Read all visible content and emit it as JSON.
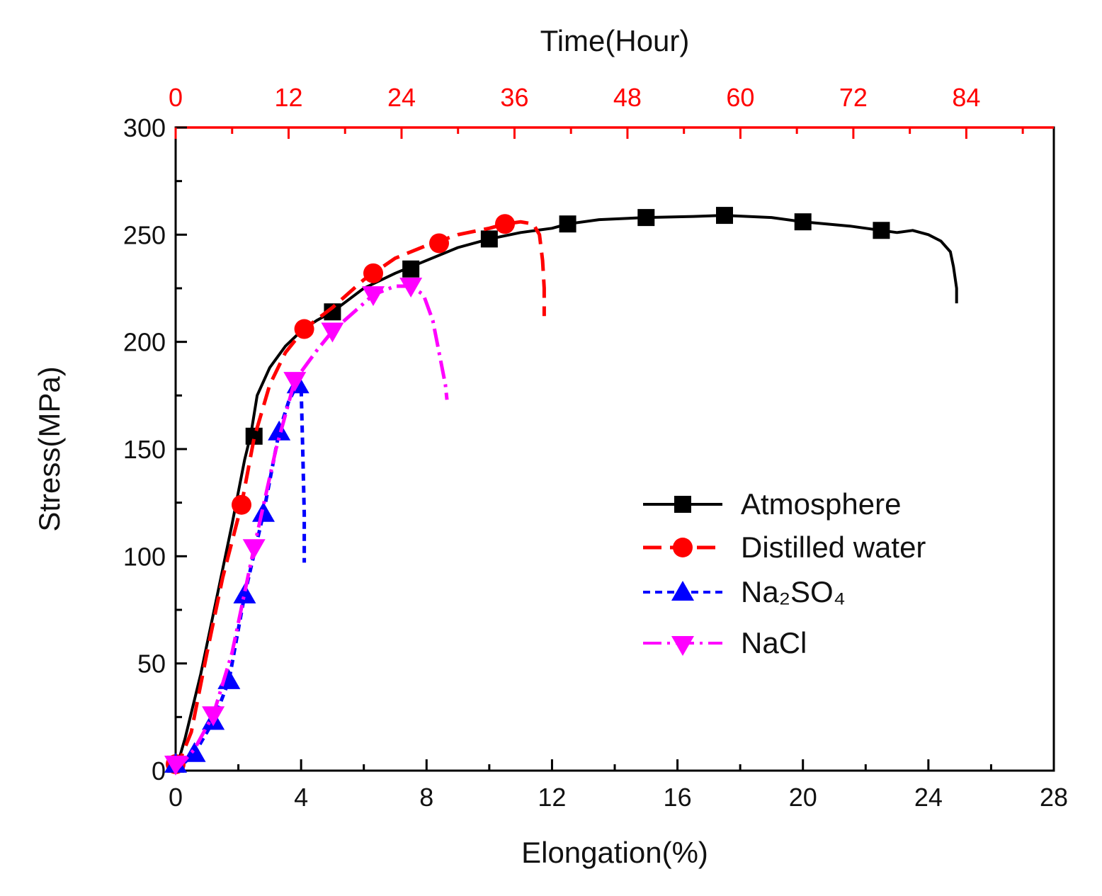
{
  "chart_data": {
    "type": "line",
    "xlabel": "Elongation(%)",
    "ylabel": "Stress(MPa)",
    "x2label": "Time(Hour)",
    "xlim": [
      0,
      28
    ],
    "ylim": [
      0,
      300
    ],
    "x2lim": [
      0,
      93.3
    ],
    "xticks": [
      "0",
      "4",
      "8",
      "12",
      "16",
      "20",
      "24",
      "28"
    ],
    "yticks": [
      "0",
      "50",
      "100",
      "150",
      "200",
      "250",
      "300"
    ],
    "x2ticks": [
      "0",
      "12",
      "24",
      "36",
      "48",
      "60",
      "72",
      "84"
    ],
    "grid": false,
    "legend_position": "lower-right",
    "top_axis_color": "#ff0000",
    "series": [
      {
        "name": "Atmosphere",
        "color": "#000000",
        "line_style": "solid",
        "marker": "square",
        "x": [
          0,
          0.3,
          0.8,
          1.3,
          1.8,
          2.2,
          2.4,
          2.6,
          3.0,
          3.5,
          4.0,
          4.5,
          5.0,
          6.0,
          7.0,
          8.0,
          9.0,
          10.0,
          11.0,
          12.0,
          12.5,
          13.5,
          15.0,
          16.5,
          17.5,
          19.0,
          20.0,
          21.5,
          22.5,
          23.0,
          23.5,
          24.0,
          24.4,
          24.7,
          24.8,
          24.9,
          24.9
        ],
        "y": [
          0,
          15,
          45,
          80,
          115,
          145,
          157,
          175,
          188,
          198,
          205,
          210,
          214,
          225,
          232,
          238,
          244,
          248,
          251,
          253,
          255,
          257,
          258,
          258.5,
          259,
          258,
          256,
          254,
          252,
          251,
          252,
          250,
          247,
          242,
          235,
          225,
          218
        ],
        "marker_x": [
          0,
          2.5,
          5.0,
          7.5,
          10.0,
          12.5,
          15.0,
          17.5,
          20.0,
          22.5
        ],
        "marker_y": [
          3,
          156,
          214,
          234,
          248,
          255,
          258,
          259,
          256,
          252
        ]
      },
      {
        "name": "Distilled water",
        "color": "#ff0000",
        "line_style": "dash",
        "marker": "circle",
        "x": [
          0,
          0.5,
          1.0,
          1.5,
          2.1,
          2.5,
          3.0,
          3.5,
          4.1,
          5.0,
          6.0,
          7.0,
          8.0,
          9.0,
          10.0,
          10.5,
          11.0,
          11.4,
          11.6,
          11.7,
          11.75,
          11.75
        ],
        "y": [
          0,
          18,
          55,
          90,
          124,
          155,
          180,
          195,
          206,
          216,
          229,
          239,
          245,
          250,
          253,
          255,
          256,
          255,
          250,
          238,
          225,
          212
        ],
        "marker_x": [
          0,
          2.1,
          4.1,
          6.3,
          8.4,
          10.5
        ],
        "marker_y": [
          3,
          124,
          206,
          232,
          246,
          255
        ]
      },
      {
        "name": "Na₂SO₄",
        "color": "#0000ff",
        "line_style": "short-dash",
        "marker": "triangle-up",
        "x": [
          0,
          0.6,
          1.2,
          1.7,
          2.2,
          2.8,
          3.3,
          3.6,
          3.9,
          4.0,
          4.05,
          4.1,
          4.1
        ],
        "y": [
          0,
          8,
          23,
          42,
          82,
          120,
          158,
          172,
          181,
          180,
          150,
          120,
          97
        ],
        "marker_x": [
          0,
          0.6,
          1.2,
          1.7,
          2.2,
          2.8,
          3.3,
          3.9
        ],
        "marker_y": [
          3,
          8,
          23,
          42,
          82,
          120,
          158,
          180
        ]
      },
      {
        "name": "NaCl",
        "color": "#ff00ff",
        "line_style": "dash-dot",
        "marker": "triangle-down",
        "x": [
          0,
          0.6,
          1.2,
          1.8,
          2.5,
          3.2,
          3.8,
          4.5,
          5.0,
          6.0,
          6.3,
          7.0,
          7.5,
          7.9,
          8.2,
          8.4,
          8.6,
          8.65
        ],
        "y": [
          0,
          10,
          26,
          55,
          104,
          150,
          182,
          196,
          205,
          218,
          222,
          226,
          226,
          222,
          210,
          195,
          180,
          173
        ],
        "marker_x": [
          0,
          1.2,
          2.5,
          3.8,
          5.0,
          6.3,
          7.5
        ],
        "marker_y": [
          3,
          26,
          104,
          182,
          205,
          222,
          226
        ]
      }
    ]
  }
}
